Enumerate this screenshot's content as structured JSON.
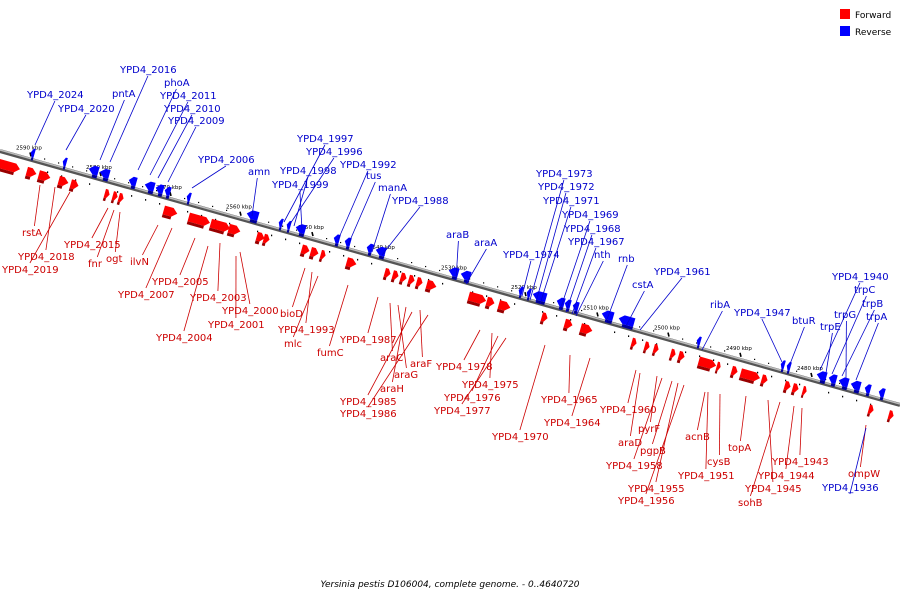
{
  "legend": {
    "forward_label": "Forward",
    "reverse_label": "Reverse",
    "forward_color": "#ff0000",
    "reverse_color": "#0000ff"
  },
  "caption": "Yersinia pestis D106004, complete genome. - 0..4640720",
  "axis": {
    "start_kbp": 2590,
    "end_kbp": 2480,
    "unit": "kbp",
    "backbone_color": "#888888"
  },
  "ticks": [
    {
      "label": "2590 kbp",
      "kbp": 2590
    },
    {
      "label": "2580 kbp",
      "kbp": 2580
    },
    {
      "label": "2570 kbp",
      "kbp": 2570
    },
    {
      "label": "2560 kbp",
      "kbp": 2560
    },
    {
      "label": "2550 kbp",
      "kbp": 2550
    },
    {
      "label": "2540 kbp",
      "kbp": 2540
    },
    {
      "label": "2530 kbp",
      "kbp": 2530
    },
    {
      "label": "2520 kbp",
      "kbp": 2520
    },
    {
      "label": "2510 kbp",
      "kbp": 2510
    },
    {
      "label": "2500 kbp",
      "kbp": 2500
    },
    {
      "label": "2490 kbp",
      "kbp": 2490
    },
    {
      "label": "2480 kbp",
      "kbp": 2480
    }
  ],
  "forward_genes": [
    "rstA",
    "YPD4_2018",
    "YPD4_2019",
    "YPD4_2015",
    "fnr",
    "ogt",
    "ilvN",
    "YPD4_2007",
    "YPD4_2005",
    "YPD4_2003",
    "YPD4_2004",
    "YPD4_2000",
    "YPD4_2001",
    "bioD",
    "YPD4_1993",
    "mlc",
    "fumC",
    "YPD4_1987",
    "araC",
    "araG",
    "araH",
    "araF",
    "YPD4_1985",
    "YPD4_1986",
    "YPD4_1978",
    "YPD4_1975",
    "YPD4_1976",
    "YPD4_1977",
    "YPD4_1970",
    "YPD4_1965",
    "YPD4_1964",
    "YPD4_1960",
    "araD",
    "pyrF",
    "YPD4_1958",
    "pgpB",
    "YPD4_1955",
    "YPD4_1956",
    "YPD4_1951",
    "cysB",
    "acnB",
    "topA",
    "YPD4_1945",
    "sohB",
    "YPD4_1944",
    "YPD4_1943",
    "ompW"
  ],
  "reverse_genes": [
    "YPD4_2024",
    "YPD4_2020",
    "pntA",
    "YPD4_2016",
    "phoA",
    "YPD4_2011",
    "YPD4_2010",
    "YPD4_2009",
    "YPD4_2006",
    "amn",
    "YPD4_1997",
    "YPD4_1996",
    "YPD4_1998",
    "YPD4_1999",
    "YPD4_1992",
    "tus",
    "manA",
    "YPD4_1988",
    "araB",
    "araA",
    "YPD4_1974",
    "YPD4_1973",
    "YPD4_1972",
    "YPD4_1971",
    "YPD4_1969",
    "YPD4_1968",
    "YPD4_1967",
    "nth",
    "rnb",
    "cstA",
    "YPD4_1961",
    "ribA",
    "YPD4_1947",
    "btuR",
    "YPD4_1940",
    "trpC",
    "trpB",
    "trpA",
    "trpG",
    "trpE",
    "YPD4_1936"
  ]
}
